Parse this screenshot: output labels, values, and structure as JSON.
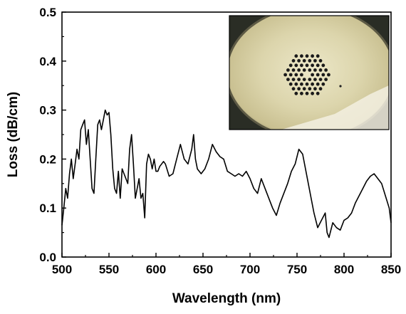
{
  "chart_data": {
    "type": "line",
    "title": "",
    "xlabel": "Wavelength (nm)",
    "ylabel": "Loss (dB/cm)",
    "xlim": [
      500,
      850
    ],
    "ylim": [
      0.0,
      0.5
    ],
    "xticks": [
      500,
      550,
      600,
      650,
      700,
      750,
      800,
      850
    ],
    "yticks": [
      0.0,
      0.1,
      0.2,
      0.3,
      0.4,
      0.5
    ],
    "ytick_labels": [
      "0.0",
      "0.1",
      "0.2",
      "0.3",
      "0.4",
      "0.5"
    ],
    "grid": false,
    "legend": "none",
    "series": [
      {
        "color": "#000000",
        "x": [
          500,
          502,
          504,
          506,
          508,
          510,
          512,
          514,
          516,
          518,
          520,
          522,
          524,
          526,
          528,
          530,
          532,
          534,
          536,
          538,
          540,
          542,
          544,
          546,
          548,
          550,
          552,
          554,
          556,
          558,
          560,
          562,
          564,
          566,
          568,
          570,
          572,
          574,
          576,
          578,
          580,
          582,
          584,
          586,
          588,
          590,
          592,
          594,
          596,
          598,
          600,
          602,
          604,
          606,
          608,
          610,
          614,
          618,
          622,
          626,
          630,
          634,
          638,
          640,
          642,
          644,
          648,
          652,
          656,
          660,
          664,
          666,
          668,
          672,
          676,
          680,
          684,
          688,
          692,
          696,
          700,
          704,
          708,
          712,
          716,
          720,
          724,
          728,
          732,
          736,
          740,
          744,
          748,
          752,
          756,
          760,
          764,
          768,
          772,
          776,
          780,
          782,
          784,
          788,
          792,
          796,
          800,
          804,
          808,
          812,
          816,
          820,
          824,
          828,
          832,
          836,
          840,
          844,
          848,
          850
        ],
        "y": [
          0.065,
          0.1,
          0.14,
          0.12,
          0.17,
          0.2,
          0.16,
          0.19,
          0.22,
          0.2,
          0.26,
          0.27,
          0.28,
          0.23,
          0.26,
          0.2,
          0.14,
          0.13,
          0.2,
          0.27,
          0.28,
          0.26,
          0.28,
          0.3,
          0.29,
          0.295,
          0.25,
          0.18,
          0.14,
          0.13,
          0.175,
          0.12,
          0.18,
          0.17,
          0.16,
          0.15,
          0.22,
          0.25,
          0.19,
          0.12,
          0.14,
          0.16,
          0.12,
          0.13,
          0.08,
          0.19,
          0.21,
          0.2,
          0.18,
          0.2,
          0.175,
          0.175,
          0.185,
          0.19,
          0.195,
          0.19,
          0.165,
          0.17,
          0.2,
          0.23,
          0.2,
          0.19,
          0.22,
          0.25,
          0.2,
          0.18,
          0.17,
          0.18,
          0.2,
          0.23,
          0.215,
          0.21,
          0.205,
          0.2,
          0.175,
          0.17,
          0.165,
          0.17,
          0.165,
          0.175,
          0.16,
          0.14,
          0.13,
          0.16,
          0.14,
          0.12,
          0.1,
          0.085,
          0.11,
          0.13,
          0.15,
          0.175,
          0.19,
          0.22,
          0.21,
          0.17,
          0.13,
          0.09,
          0.06,
          0.075,
          0.09,
          0.05,
          0.04,
          0.07,
          0.06,
          0.055,
          0.075,
          0.08,
          0.09,
          0.11,
          0.125,
          0.14,
          0.155,
          0.165,
          0.17,
          0.16,
          0.15,
          0.125,
          0.1,
          0.07
        ]
      }
    ]
  }
}
